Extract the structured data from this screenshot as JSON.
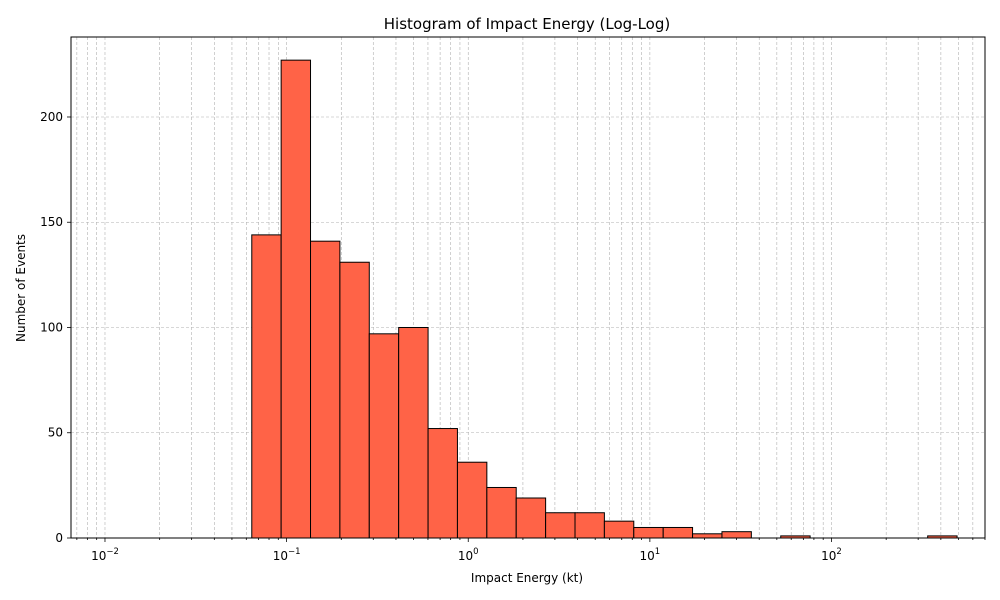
{
  "chart_data": {
    "type": "bar",
    "title": "Histogram of Impact Energy (Log-Log)",
    "xlabel": "Impact Energy (kt)",
    "ylabel": "Number of Events",
    "x_scale": "log",
    "xlim": [
      0.0065,
      700
    ],
    "ylim": [
      0,
      238
    ],
    "grid": true,
    "bar_color": "#FF6347",
    "edge_color": "#000000",
    "x_ticks": [
      {
        "base": "10",
        "exp": "−2",
        "value": 0.01
      },
      {
        "base": "10",
        "exp": "−1",
        "value": 0.1
      },
      {
        "base": "10",
        "exp": "0",
        "value": 1
      },
      {
        "base": "10",
        "exp": "1",
        "value": 10
      },
      {
        "base": "10",
        "exp": "2",
        "value": 100
      }
    ],
    "y_ticks": [
      0,
      50,
      100,
      150,
      200
    ],
    "bins": [
      {
        "x0": 0.01,
        "x1": 0.0145,
        "count": 0
      },
      {
        "x0": 0.0145,
        "x1": 0.021,
        "count": 0
      },
      {
        "x0": 0.021,
        "x1": 0.0305,
        "count": 0
      },
      {
        "x0": 0.0305,
        "x1": 0.0443,
        "count": 0
      },
      {
        "x0": 0.0443,
        "x1": 0.0643,
        "count": 0
      },
      {
        "x0": 0.0643,
        "x1": 0.0933,
        "count": 144
      },
      {
        "x0": 0.0933,
        "x1": 0.1354,
        "count": 227
      },
      {
        "x0": 0.1354,
        "x1": 0.1965,
        "count": 141
      },
      {
        "x0": 0.1965,
        "x1": 0.2852,
        "count": 131
      },
      {
        "x0": 0.2852,
        "x1": 0.414,
        "count": 97
      },
      {
        "x0": 0.414,
        "x1": 0.601,
        "count": 100
      },
      {
        "x0": 0.601,
        "x1": 0.872,
        "count": 52
      },
      {
        "x0": 0.872,
        "x1": 1.266,
        "count": 36
      },
      {
        "x0": 1.266,
        "x1": 1.837,
        "count": 24
      },
      {
        "x0": 1.837,
        "x1": 2.667,
        "count": 19
      },
      {
        "x0": 2.667,
        "x1": 3.871,
        "count": 12
      },
      {
        "x0": 3.871,
        "x1": 5.618,
        "count": 12
      },
      {
        "x0": 5.618,
        "x1": 8.155,
        "count": 8
      },
      {
        "x0": 8.155,
        "x1": 11.84,
        "count": 5
      },
      {
        "x0": 11.84,
        "x1": 17.18,
        "count": 5
      },
      {
        "x0": 17.18,
        "x1": 24.94,
        "count": 2
      },
      {
        "x0": 24.94,
        "x1": 36.2,
        "count": 3
      },
      {
        "x0": 36.2,
        "x1": 52.54,
        "count": 0
      },
      {
        "x0": 52.54,
        "x1": 76.26,
        "count": 1
      },
      {
        "x0": 76.26,
        "x1": 110.7,
        "count": 0
      },
      {
        "x0": 110.7,
        "x1": 160.7,
        "count": 0
      },
      {
        "x0": 160.7,
        "x1": 233.2,
        "count": 0
      },
      {
        "x0": 233.2,
        "x1": 338.5,
        "count": 0
      },
      {
        "x0": 338.5,
        "x1": 491.3,
        "count": 1
      }
    ]
  }
}
